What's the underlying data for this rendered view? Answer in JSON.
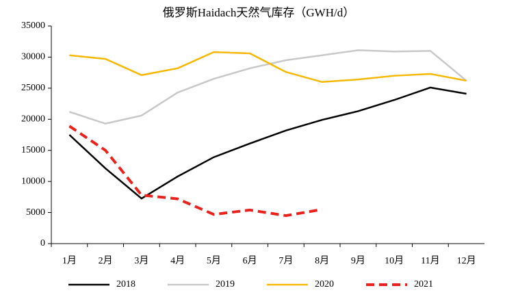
{
  "chart_data": {
    "type": "line",
    "title": "俄罗斯Haidach天然气库存（GWH/d）",
    "categories": [
      "1月",
      "2月",
      "3月",
      "4月",
      "5月",
      "6月",
      "7月",
      "8月",
      "9月",
      "10月",
      "11月",
      "12月"
    ],
    "series": [
      {
        "name": "2018",
        "color": "#000000",
        "dash": false,
        "values": [
          17500,
          12100,
          7260,
          10800,
          13900,
          16100,
          18200,
          19900,
          21300,
          23100,
          25100,
          24100
        ]
      },
      {
        "name": "2019",
        "color": "#c8c8c8",
        "dash": false,
        "values": [
          21200,
          19300,
          20600,
          24300,
          26500,
          28200,
          29500,
          30300,
          31100,
          30900,
          31000,
          26200
        ]
      },
      {
        "name": "2020",
        "color": "#f5b800",
        "dash": false,
        "values": [
          30300,
          29700,
          27100,
          28200,
          30800,
          30600,
          27600,
          26000,
          26400,
          27000,
          27300,
          26200
        ]
      },
      {
        "name": "2021",
        "color": "#e8231d",
        "dash": true,
        "values": [
          18900,
          15000,
          7800,
          7200,
          4700,
          5400,
          4500,
          5500,
          null,
          null,
          null,
          null
        ]
      }
    ],
    "ylim": [
      0,
      35000
    ],
    "yticks": [
      0,
      5000,
      10000,
      15000,
      20000,
      25000,
      30000,
      35000
    ],
    "legend": "bottom"
  }
}
